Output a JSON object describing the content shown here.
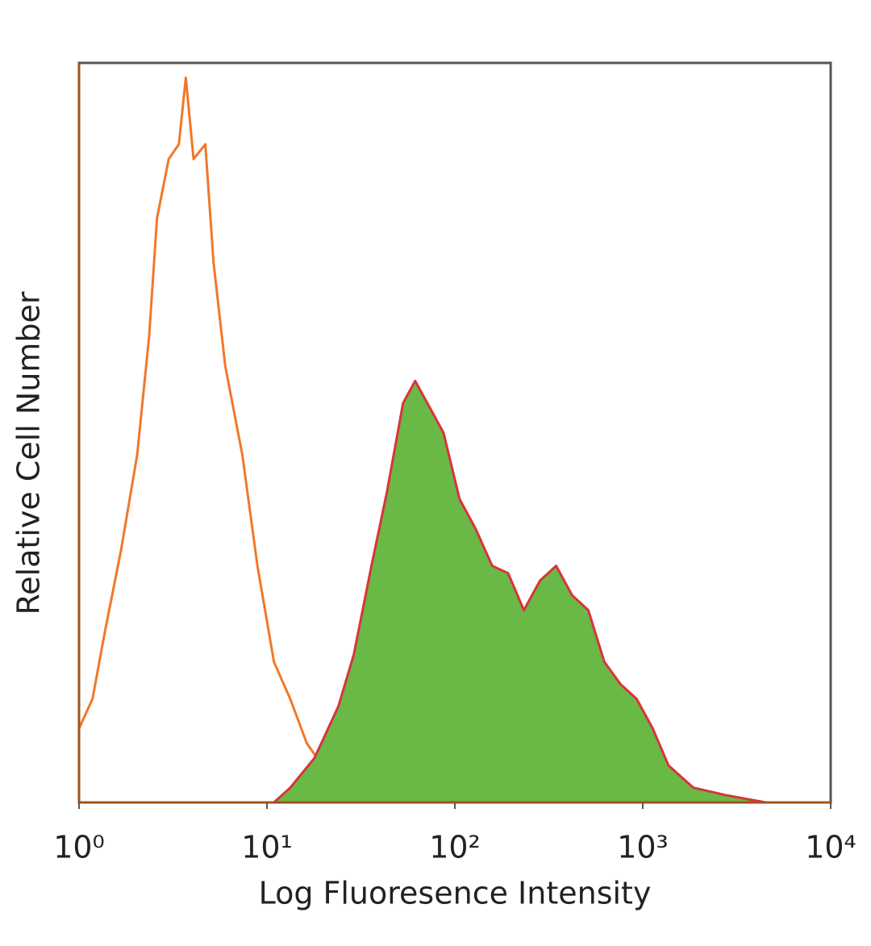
{
  "chart_data": {
    "type": "histogram-overlay",
    "x_label": "Log Fluoresence Intensity",
    "y_label": "Relative Cell Number",
    "xscale": "log",
    "xlim": [
      1,
      10000
    ],
    "ylim": [
      0,
      100
    ],
    "xticks": [
      {
        "value": 1,
        "label": "10⁰"
      },
      {
        "value": 10,
        "label": "10¹"
      },
      {
        "value": 100,
        "label": "10²"
      },
      {
        "value": 1000,
        "label": "10³"
      },
      {
        "value": 10000,
        "label": "10⁴"
      }
    ],
    "series": [
      {
        "color": "#f07828",
        "fill": "none",
        "x": [
          1,
          1.18,
          1.37,
          1.67,
          2.04,
          2.36,
          2.6,
          3.0,
          3.4,
          3.7,
          4.07,
          4.7,
          5.2,
          6.0,
          7.4,
          8.9,
          10.9,
          13.3,
          16.3,
          19.7,
          24,
          32
        ],
        "values": [
          10,
          14,
          23,
          34,
          47,
          63,
          79,
          87,
          89,
          98,
          87,
          89,
          73,
          59,
          47,
          32,
          19,
          14,
          8,
          5,
          1,
          0
        ]
      },
      {
        "color": "#d9343a",
        "fill": "#6ab845",
        "x": [
          10.9,
          13.3,
          17.9,
          24,
          29,
          36,
          43.5,
          53,
          61.5,
          71.4,
          87,
          106,
          129,
          158,
          192,
          233,
          284,
          346,
          421,
          513,
          625,
          761,
          928,
          1130,
          1370,
          1860,
          2750,
          4520
        ],
        "values": [
          0,
          2,
          6,
          13,
          20,
          32,
          42,
          54,
          57,
          54,
          50,
          41,
          37,
          32,
          31,
          26,
          30,
          32,
          28,
          26,
          19,
          16,
          14,
          10,
          5,
          2,
          1,
          0
        ]
      }
    ]
  }
}
